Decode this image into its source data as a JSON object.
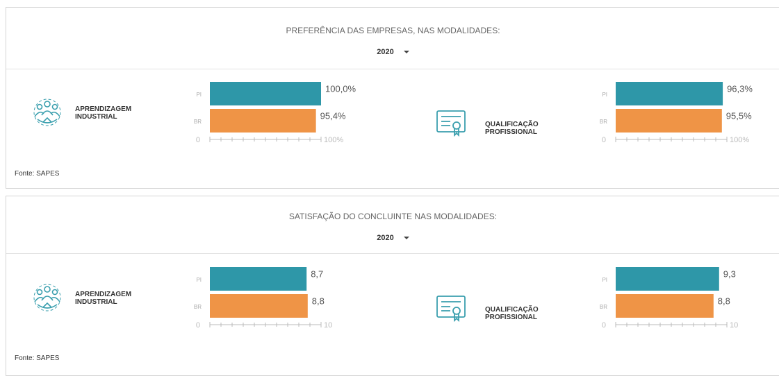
{
  "panels": [
    {
      "title": "PREFERÊNCIA DAS EMPRESAS, NAS MODALIDADES:",
      "year": "2020",
      "source": "Fonte: SAPES"
    },
    {
      "title": "SATISFAÇÃO DO CONCLUINTE NAS MODALIDADES:",
      "year": "2020",
      "source": "Fonte: SAPES"
    }
  ],
  "chart_data": [
    {
      "type": "hbar",
      "title": "APRENDIZAGEM INDUSTRIAL",
      "categories": [
        "PI",
        "BR"
      ],
      "values": [
        100,
        95.4
      ],
      "value_labels": [
        "100,0%",
        "95,4%"
      ],
      "colors": [
        "#2e97a8",
        "#ef9446"
      ],
      "xlim": [
        0,
        100
      ],
      "xticks": [
        0,
        {
          "value": 100,
          "label": "100%"
        }
      ]
    },
    {
      "type": "hbar",
      "title": "QUALIFICAÇÃO PROFISSIONAL",
      "categories": [
        "PI",
        "BR"
      ],
      "values": [
        96.3,
        95.5
      ],
      "value_labels": [
        "96,3%",
        "95,5%"
      ],
      "colors": [
        "#2e97a8",
        "#ef9446"
      ],
      "xlim": [
        0,
        100
      ],
      "xticks": [
        0,
        {
          "value": 100,
          "label": "100%"
        }
      ]
    },
    {
      "type": "hbar",
      "title": "APRENDIZAGEM INDUSTRIAL",
      "categories": [
        "PI",
        "BR"
      ],
      "values": [
        8.7,
        8.8
      ],
      "value_labels": [
        "8,7",
        "8,8"
      ],
      "colors": [
        "#2e97a8",
        "#ef9446"
      ],
      "xlim": [
        0,
        10
      ],
      "xticks": [
        0,
        10
      ]
    },
    {
      "type": "hbar",
      "title": "QUALIFICAÇÃO PROFISSIONAL",
      "categories": [
        "PI",
        "BR"
      ],
      "values": [
        9.3,
        8.8
      ],
      "value_labels": [
        "9,3",
        "8,8"
      ],
      "colors": [
        "#2e97a8",
        "#ef9446"
      ],
      "xlim": [
        0,
        10
      ],
      "xticks": [
        0,
        10
      ]
    }
  ]
}
